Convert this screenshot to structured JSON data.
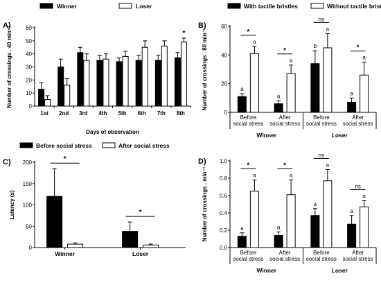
{
  "colors": {
    "black": "#000000",
    "white": "#ffffff"
  },
  "chart_data": [
    {
      "id": "A",
      "panel_label": "A)",
      "type": "bar",
      "legend": [
        "Winner",
        "Loser"
      ],
      "categories": [
        "1st",
        "2nd",
        "3rd",
        "4th",
        "5th",
        "6th",
        "7th",
        "8th"
      ],
      "series": [
        {
          "name": "Winner",
          "values": [
            13,
            30,
            41,
            35,
            34,
            35,
            35,
            37
          ],
          "errors": [
            5,
            6,
            4,
            4,
            3,
            4,
            4,
            4
          ]
        },
        {
          "name": "Loser",
          "values": [
            5,
            16,
            35,
            36,
            38,
            45,
            46,
            49
          ],
          "errors": [
            3,
            5,
            5,
            4,
            4,
            5,
            4,
            3
          ]
        }
      ],
      "ylabel": "Number of crossings . 40 min⁻¹",
      "xlabel": "Days of observation",
      "ylim": [
        0,
        60
      ],
      "yticks": [
        "0",
        "10",
        "20",
        "30",
        "40",
        "50",
        "60"
      ],
      "annotations": [
        "*"
      ]
    },
    {
      "id": "B",
      "panel_label": "B)",
      "type": "bar",
      "legend": [
        "With tactile bristles",
        "Without tactile bristles"
      ],
      "categories": [
        "Before social stress",
        "After social stress",
        "Before social stress",
        "After social stress"
      ],
      "groups": [
        "Winner",
        "Loser"
      ],
      "series": [
        {
          "name": "With tactile bristles",
          "values": [
            11,
            6,
            34,
            7
          ],
          "errors": [
            2,
            2,
            9,
            3
          ],
          "letters": [
            "a",
            "a",
            "b",
            "a"
          ]
        },
        {
          "name": "Without tactile bristles",
          "values": [
            41,
            27,
            45,
            26
          ],
          "errors": [
            5,
            6,
            10,
            9
          ],
          "letters": [
            "a",
            "a",
            "a",
            "a"
          ]
        }
      ],
      "ylabel": "Number of crossings . 80 min⁻¹",
      "ylim": [
        0,
        60
      ],
      "yticks": [
        "0",
        "20",
        "40",
        "60"
      ],
      "significance": [
        "*",
        "*",
        "ns",
        "*"
      ]
    },
    {
      "id": "C",
      "panel_label": "C)",
      "type": "bar",
      "legend": [
        "Before social stress",
        "After social stress"
      ],
      "categories": [
        "Winner",
        "Loser"
      ],
      "series": [
        {
          "name": "Before social stress",
          "values": [
            120,
            38
          ],
          "errors": [
            65,
            22
          ]
        },
        {
          "name": "After social stress",
          "values": [
            8,
            6
          ],
          "errors": [
            3,
            2
          ]
        }
      ],
      "ylabel": "Latency (s)",
      "ylim": [
        0,
        200
      ],
      "yticks": [
        "0",
        "50",
        "100",
        "150",
        "200"
      ],
      "significance": [
        "*",
        "*"
      ]
    },
    {
      "id": "D",
      "panel_label": "D)",
      "type": "bar",
      "categories": [
        "Before social stress",
        "After social stress",
        "Before social stress",
        "After social stress"
      ],
      "groups": [
        "Winner",
        "Loser"
      ],
      "series": [
        {
          "name": "With tactile bristles",
          "values": [
            0.13,
            0.14,
            0.37,
            0.27
          ],
          "errors": [
            0.04,
            0.04,
            0.08,
            0.1
          ],
          "letters": [
            "a",
            "a",
            "a",
            "a"
          ]
        },
        {
          "name": "Without tactile bristles",
          "values": [
            0.65,
            0.61,
            0.77,
            0.47
          ],
          "errors": [
            0.13,
            0.17,
            0.13,
            0.07
          ],
          "letters": [
            "a",
            "a",
            "a",
            "a"
          ]
        }
      ],
      "ylabel": "Number of crossings . min⁻¹",
      "ylim": [
        0,
        1.0
      ],
      "yticks": [
        "0.0",
        "0.2",
        "0.4",
        "0.6",
        "0.8",
        "1.0"
      ],
      "significance": [
        "*",
        "*",
        "ns",
        "ns"
      ]
    }
  ]
}
